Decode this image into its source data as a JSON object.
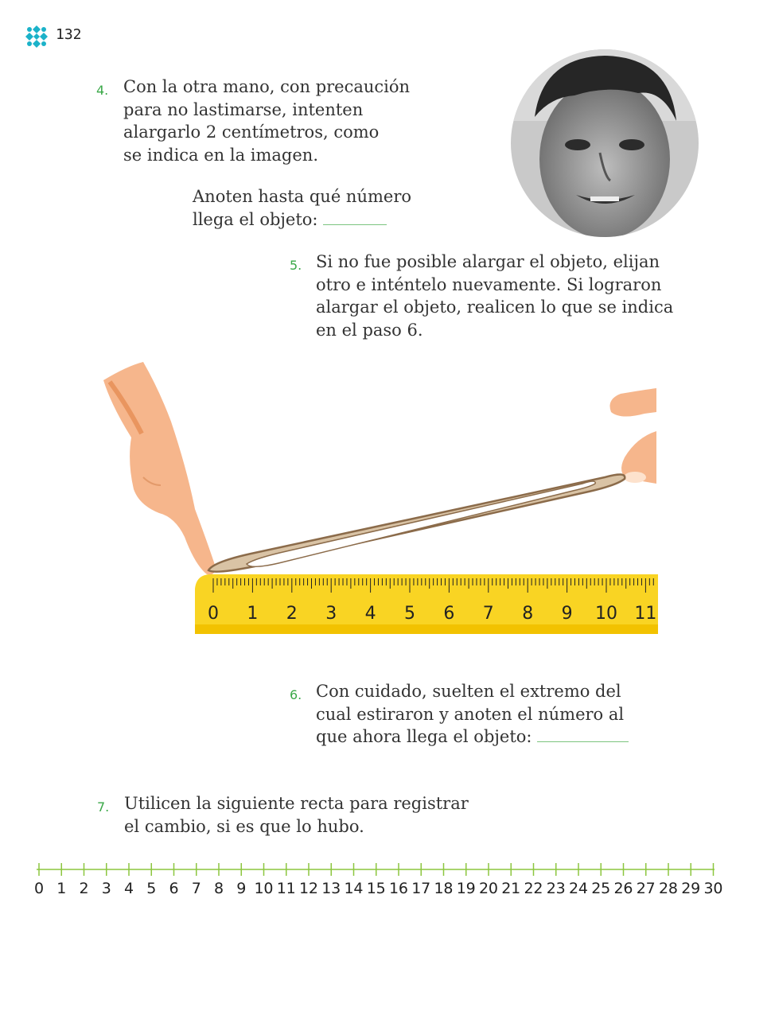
{
  "header": {
    "page_number": "132"
  },
  "steps": [
    {
      "number": "4.",
      "lines": [
        "Con la otra mano, con precaución",
        "para no lastimarse, intenten",
        "alargarlo 2 centímetros, como",
        "se indica en la imagen."
      ],
      "prompt_lines": [
        "Anoten hasta qué número",
        "llega el objeto:"
      ]
    },
    {
      "number": "5.",
      "lines": [
        "Si no fue posible alargar el objeto, elijan",
        "otro e inténtelo nuevamente. Si lograron",
        "alargar el objeto, realicen lo que se indica",
        "en el paso 6."
      ]
    },
    {
      "number": "6.",
      "lines": [
        "Con cuidado, suelten el extremo del",
        "cual estiraron y anoten el número al",
        "que ahora llega el objeto:"
      ]
    },
    {
      "number": "7.",
      "lines": [
        "Utilicen la siguiente recta para registrar",
        "el cambio, si es que lo hubo."
      ]
    }
  ],
  "ruler": {
    "labels": [
      "0",
      "1",
      "2",
      "3",
      "4",
      "5",
      "6",
      "7",
      "8",
      "9",
      "10",
      "11"
    ],
    "color": "#f9d423"
  },
  "number_line": {
    "labels": [
      "0",
      "1",
      "2",
      "3",
      "4",
      "5",
      "6",
      "7",
      "8",
      "9",
      "10",
      "11",
      "12",
      "13",
      "14",
      "15",
      "16",
      "17",
      "18",
      "19",
      "20",
      "21",
      "22",
      "23",
      "24",
      "25",
      "26",
      "27",
      "28",
      "29",
      "30"
    ],
    "color": "#8cc63f"
  },
  "colors": {
    "step_number": "#3aa848",
    "logo": "#1bb2c9",
    "answer_line": "#7cc47f"
  }
}
